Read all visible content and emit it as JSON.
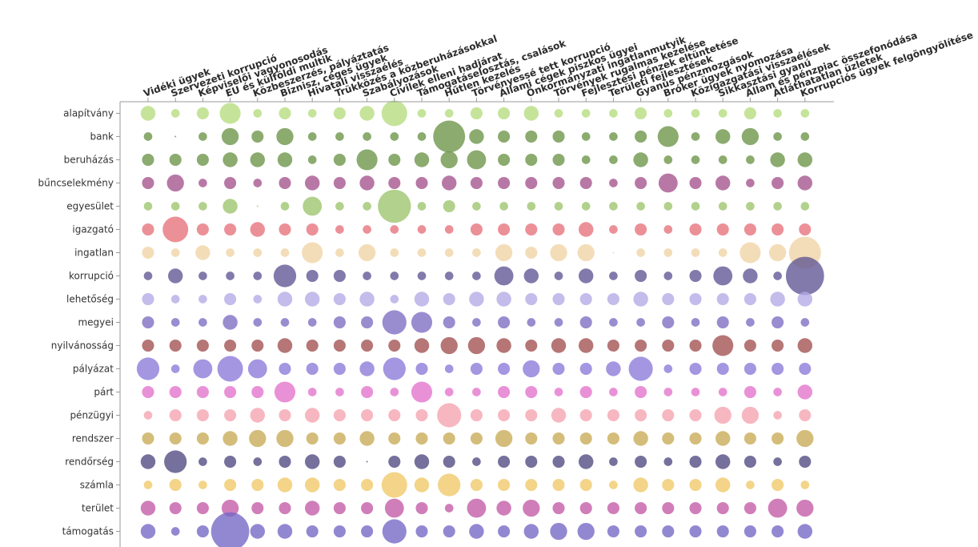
{
  "chart_data": {
    "type": "bubble-matrix",
    "columns": [
      "Vidéki ügyek",
      "Szervezeti korrupció",
      "Képviselői vagyonosodás",
      "EU és külföldi multik",
      "Közbeszerzés, pályáztatás",
      "Biznisz, céges ügyek",
      "Hivatali visszaélés",
      "Trükközés a közberuházásokkal",
      "Szabályozások",
      "Civilek elleni hadjárat",
      "Támogatáselosztás, csalások",
      "Hűtlen kezelés",
      "Törvényessé tett korrupció",
      "Állami cégek piszkos ügyei",
      "Önkormányzati ingatlanmutyik",
      "Törvények rugalmas kezelése",
      "Fejlesztési pénzek eltüntetése",
      "Területi fejlesztések",
      "Gyanús pénzmozgások",
      "Bróker ügyek nyomozása",
      "Közigazgatási visszaélések",
      "Sikkasztási gyanú",
      "Állam és pénzpiac összefonódása",
      "Átláthatatlan üzletek",
      "Korrupciós ügyek felgöngyölítése"
    ],
    "rows": [
      {
        "label": "alapítvány",
        "color": "#b5dc7e",
        "values": [
          3,
          1,
          2,
          6,
          1,
          2,
          1,
          2,
          3,
          9,
          1,
          1,
          2,
          2,
          3,
          1,
          1,
          1,
          2,
          1,
          1,
          1,
          2,
          1,
          1
        ]
      },
      {
        "label": "bank",
        "color": "#6a9446",
        "values": [
          1,
          0,
          1,
          4,
          2,
          4,
          1,
          1,
          1,
          1,
          1,
          14,
          3,
          2,
          2,
          2,
          1,
          1,
          2,
          6,
          1,
          3,
          4,
          1,
          1
        ]
      },
      {
        "label": "beruházás",
        "color": "#6a9446",
        "values": [
          2,
          2,
          2,
          3,
          3,
          3,
          1,
          2,
          6,
          2,
          3,
          4,
          5,
          2,
          2,
          2,
          1,
          1,
          3,
          1,
          1,
          1,
          1,
          3,
          3
        ]
      },
      {
        "label": "bűncselekmény",
        "color": "#a4528c",
        "values": [
          2,
          4,
          1,
          2,
          1,
          2,
          3,
          2,
          3,
          2,
          2,
          3,
          2,
          2,
          2,
          2,
          2,
          1,
          2,
          5,
          2,
          3,
          1,
          2,
          3
        ]
      },
      {
        "label": "egyesület",
        "color": "#9cc46c",
        "values": [
          1,
          1,
          1,
          3,
          0,
          1,
          5,
          1,
          1,
          15,
          1,
          2,
          1,
          1,
          1,
          1,
          1,
          1,
          1,
          1,
          1,
          1,
          1,
          1,
          1
        ]
      },
      {
        "label": "igazgató",
        "color": "#e7717b",
        "values": [
          2,
          9,
          2,
          2,
          3,
          2,
          2,
          1,
          1,
          1,
          1,
          1,
          2,
          2,
          2,
          2,
          3,
          1,
          2,
          1,
          2,
          2,
          2,
          2,
          2
        ]
      },
      {
        "label": "ingatlan",
        "color": "#f0d3a4",
        "values": [
          2,
          1,
          3,
          1,
          1,
          1,
          6,
          1,
          4,
          1,
          1,
          1,
          1,
          4,
          2,
          4,
          4,
          0,
          1,
          1,
          1,
          1,
          6,
          4,
          14
        ]
      },
      {
        "label": "korrupció",
        "color": "#5e5494",
        "values": [
          1,
          3,
          1,
          1,
          1,
          7,
          2,
          2,
          1,
          1,
          1,
          1,
          1,
          5,
          3,
          1,
          3,
          1,
          2,
          1,
          2,
          5,
          3,
          1,
          20
        ]
      },
      {
        "label": "lehetőség",
        "color": "#b3a9e6",
        "values": [
          2,
          1,
          1,
          2,
          1,
          3,
          3,
          2,
          3,
          1,
          3,
          2,
          3,
          3,
          2,
          2,
          2,
          2,
          3,
          2,
          2,
          2,
          2,
          3,
          3
        ]
      },
      {
        "label": "megyei",
        "color": "#7c6bc2",
        "values": [
          2,
          1,
          1,
          3,
          1,
          1,
          1,
          2,
          2,
          8,
          6,
          2,
          1,
          2,
          1,
          1,
          2,
          1,
          1,
          2,
          1,
          2,
          1,
          2,
          1
        ]
      },
      {
        "label": "nyilvánosság",
        "color": "#a14f4f",
        "values": [
          2,
          2,
          2,
          2,
          2,
          3,
          2,
          2,
          2,
          2,
          3,
          4,
          4,
          3,
          2,
          3,
          3,
          2,
          2,
          2,
          2,
          6,
          2,
          2,
          3
        ]
      },
      {
        "label": "pályázat",
        "color": "#8b79d8",
        "values": [
          7,
          1,
          5,
          9,
          5,
          2,
          2,
          2,
          3,
          7,
          2,
          1,
          2,
          2,
          4,
          2,
          2,
          3,
          8,
          1,
          2,
          2,
          2,
          2,
          2
        ]
      },
      {
        "label": "párt",
        "color": "#e372cc",
        "values": [
          2,
          2,
          2,
          2,
          2,
          6,
          1,
          1,
          2,
          1,
          6,
          1,
          1,
          2,
          2,
          1,
          2,
          1,
          2,
          1,
          1,
          1,
          2,
          1,
          3
        ]
      },
      {
        "label": "pénzügyi",
        "color": "#f5a3ae",
        "values": [
          1,
          2,
          2,
          2,
          3,
          2,
          3,
          2,
          2,
          2,
          2,
          8,
          2,
          2,
          2,
          3,
          2,
          2,
          2,
          2,
          2,
          4,
          4,
          1,
          2
        ]
      },
      {
        "label": "rendszer",
        "color": "#c8ab55",
        "values": [
          2,
          2,
          2,
          3,
          4,
          4,
          2,
          2,
          3,
          2,
          2,
          2,
          2,
          4,
          2,
          2,
          2,
          2,
          3,
          2,
          2,
          3,
          2,
          2,
          4
        ]
      },
      {
        "label": "rendőrség",
        "color": "#4e4880",
        "values": [
          3,
          7,
          1,
          2,
          1,
          2,
          3,
          2,
          0,
          2,
          3,
          2,
          1,
          2,
          2,
          2,
          3,
          1,
          2,
          1,
          2,
          3,
          2,
          1,
          2
        ]
      },
      {
        "label": "számla",
        "color": "#f0c867",
        "values": [
          1,
          2,
          1,
          2,
          2,
          3,
          3,
          2,
          2,
          9,
          3,
          7,
          2,
          2,
          2,
          2,
          2,
          1,
          3,
          2,
          2,
          3,
          1,
          2,
          1
        ]
      },
      {
        "label": "terület",
        "color": "#c35aa7",
        "values": [
          3,
          2,
          2,
          4,
          2,
          2,
          3,
          2,
          2,
          5,
          2,
          1,
          5,
          3,
          4,
          2,
          2,
          2,
          2,
          2,
          2,
          2,
          2,
          5,
          4
        ]
      },
      {
        "label": "támogatás",
        "color": "#7366c4",
        "values": [
          3,
          1,
          2,
          20,
          3,
          3,
          2,
          2,
          2,
          8,
          2,
          2,
          3,
          2,
          3,
          4,
          4,
          2,
          2,
          2,
          2,
          2,
          2,
          2,
          3
        ]
      }
    ]
  }
}
